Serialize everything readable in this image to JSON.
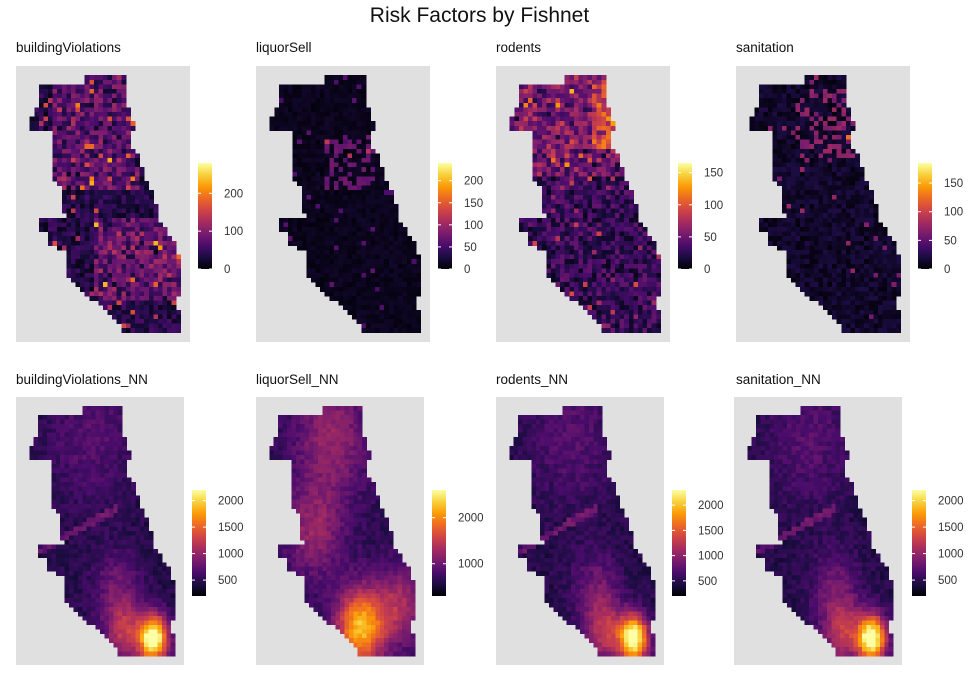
{
  "title": "Risk Factors by Fishnet",
  "colormap": [
    "#000004",
    "#1b0c41",
    "#4a0c6b",
    "#781c6d",
    "#a52c60",
    "#cf4446",
    "#ed6925",
    "#fb9b06",
    "#f7d13d",
    "#fcffa4"
  ],
  "panel_background": "#e0e0e0",
  "chart_data": [
    {
      "type": "heatmap",
      "title": "buildingViolations",
      "legend_ticks": [
        0,
        100,
        200
      ],
      "range": [
        0,
        280
      ],
      "pattern": "scattered"
    },
    {
      "type": "heatmap",
      "title": "liquorSell",
      "legend_ticks": [
        0,
        50,
        100,
        150,
        200
      ],
      "range": [
        0,
        240
      ],
      "pattern": "sparse"
    },
    {
      "type": "heatmap",
      "title": "rodents",
      "legend_ticks": [
        0,
        50,
        100,
        150
      ],
      "range": [
        0,
        165
      ],
      "pattern": "dense"
    },
    {
      "type": "heatmap",
      "title": "sanitation",
      "legend_ticks": [
        0,
        50,
        100,
        150
      ],
      "range": [
        0,
        185
      ],
      "pattern": "sparse-north"
    },
    {
      "type": "heatmap",
      "title": "buildingViolations_NN",
      "legend_ticks": [
        500,
        1000,
        1500,
        2000
      ],
      "range": [
        200,
        2200
      ],
      "pattern": "smooth-south"
    },
    {
      "type": "heatmap",
      "title": "liquorSell_NN",
      "legend_ticks": [
        1000,
        2000
      ],
      "range": [
        300,
        2600
      ],
      "pattern": "smooth-broad"
    },
    {
      "type": "heatmap",
      "title": "rodents_NN",
      "legend_ticks": [
        500,
        1000,
        1500,
        2000
      ],
      "range": [
        200,
        2300
      ],
      "pattern": "smooth-south"
    },
    {
      "type": "heatmap",
      "title": "sanitation_NN",
      "legend_ticks": [
        500,
        1000,
        1500,
        2000
      ],
      "range": [
        200,
        2200
      ],
      "pattern": "smooth-south"
    }
  ]
}
